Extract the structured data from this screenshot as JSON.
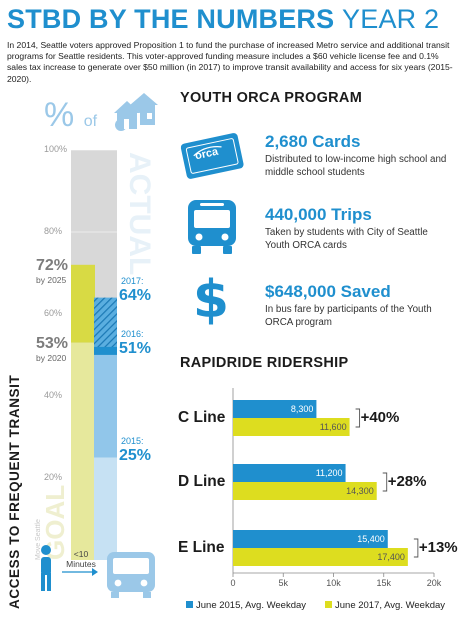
{
  "header": {
    "title_bold": "STBD BY THE NUMBERS",
    "title_light": "YEAR 2",
    "intro": "In 2014, Seattle voters approved Proposition 1 to fund the purchase of increased Metro service and additional transit programs for Seattle residents. This voter-approved funding measure includes a $60 vehicle license fee and 0.1% sales tax increase to generate over $50 million (in 2017) to improve transit availability and access for six years (2015-2020)."
  },
  "access": {
    "pct_symbol": "%",
    "of_text": "of",
    "vertical_title": "ACCESS TO FREQUENT TRANSIT",
    "actual_watermark": "ACTUAL",
    "goal_watermark": "GOAL",
    "goal_small": "Move Seattle",
    "walk_time": "<10 Minutes",
    "colors": {
      "goal_fill": "#e6e89c",
      "goal_light": "#f1f2cf",
      "actual_light": "#c6e1f3",
      "actual_mid": "#91c6ea",
      "actual_dark": "#1f8fce",
      "track": "#d8d8d8"
    }
  },
  "orca": {
    "heading": "YOUTH ORCA PROGRAM",
    "card_text": "orca",
    "stats": [
      {
        "icon": "orca-card-icon",
        "value": "2,680 Cards",
        "desc": "Distributed to low-income high school and middle school students"
      },
      {
        "icon": "bus-icon",
        "value": "440,000 Trips",
        "desc": "Taken by students with City of Seattle Youth ORCA cards"
      },
      {
        "icon": "dollar-icon",
        "value": "$648,000 Saved",
        "desc": "In bus fare by participants of the Youth ORCA program"
      }
    ]
  },
  "chart_data": [
    {
      "type": "bar",
      "orientation": "vertical-stacked",
      "ylim": [
        0,
        100
      ],
      "ticks": [
        {
          "value": 20,
          "label": "20%"
        },
        {
          "value": 40,
          "label": "40%"
        },
        {
          "value": 60,
          "label": "60%"
        },
        {
          "value": 80,
          "label": "80%"
        },
        {
          "value": 100,
          "label": "100%"
        }
      ],
      "goals": [
        {
          "value": 72,
          "label": "72%",
          "sub": "by 2025"
        },
        {
          "value": 53,
          "label": "53%",
          "sub": "by 2020"
        }
      ],
      "actuals": [
        {
          "year": "2017:",
          "value": 64,
          "label": "64%"
        },
        {
          "year": "2016:",
          "value": 51,
          "label": "51%"
        },
        {
          "year": "2015:",
          "value": 25,
          "label": "25%"
        }
      ]
    },
    {
      "type": "bar",
      "orientation": "horizontal",
      "title": "RAPIDRIDE RIDERSHIP",
      "categories": [
        "C Line",
        "D Line",
        "E Line"
      ],
      "series": [
        {
          "name": "June 2015, Avg. Weekday",
          "color": "#1f8fce",
          "values": [
            8300,
            11200,
            15400
          ],
          "labels": [
            "8,300",
            "11,200",
            "15,400"
          ]
        },
        {
          "name": "June 2017, Avg. Weekday",
          "color": "#dddd1f",
          "values": [
            11600,
            14300,
            17400
          ],
          "labels": [
            "11,600",
            "14,300",
            "17,400"
          ]
        }
      ],
      "changes": [
        "+40%",
        "+28%",
        "+13%"
      ],
      "xlim": [
        0,
        20000
      ],
      "xticks": [
        {
          "value": 0,
          "label": "0"
        },
        {
          "value": 5000,
          "label": "5k"
        },
        {
          "value": 10000,
          "label": "10k"
        },
        {
          "value": 15000,
          "label": "15k"
        },
        {
          "value": 20000,
          "label": "20k"
        }
      ]
    }
  ]
}
